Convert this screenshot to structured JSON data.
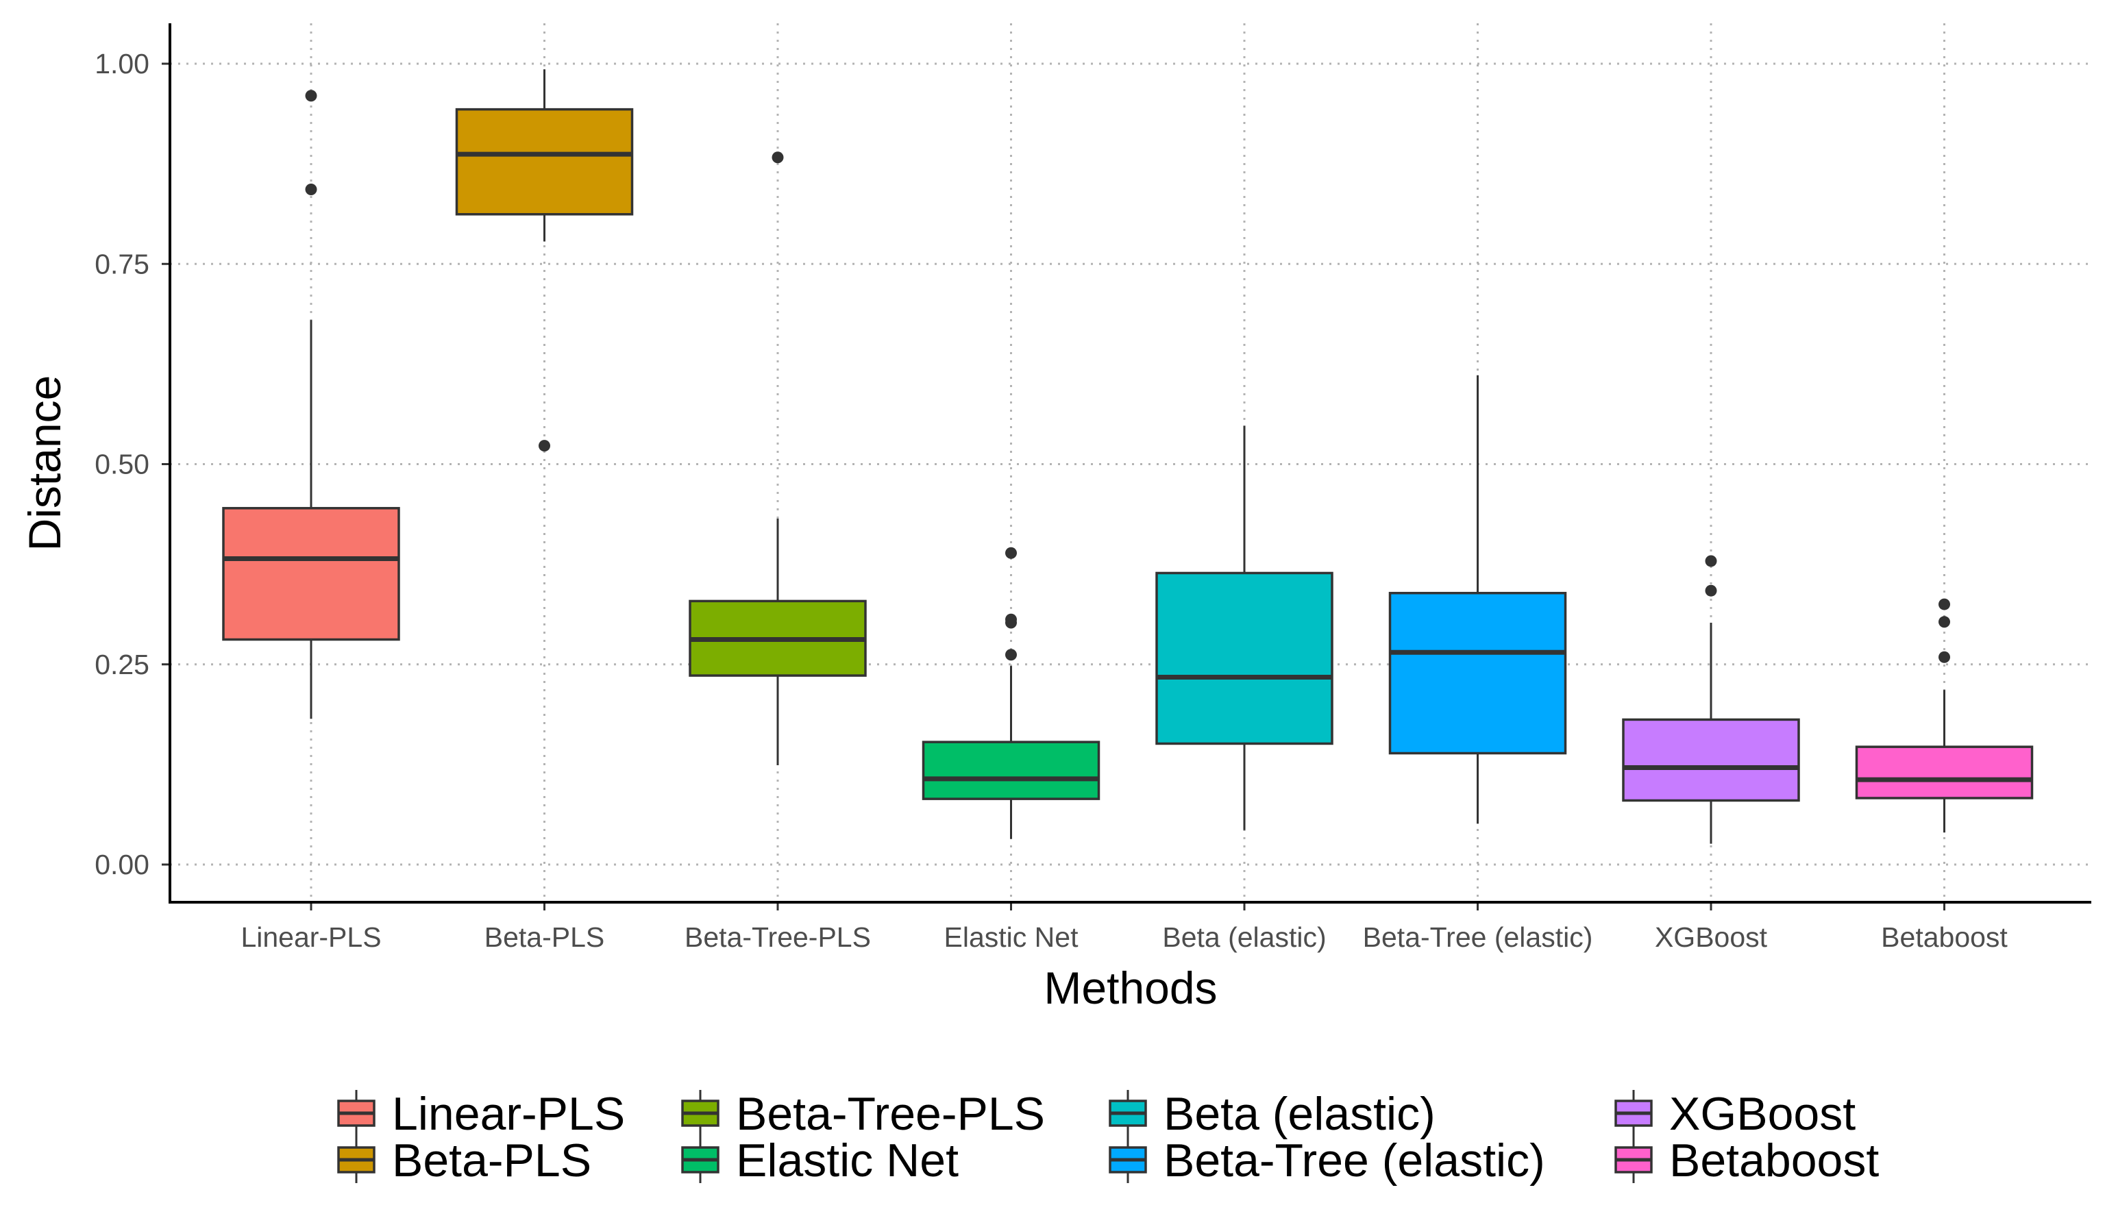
{
  "chart_data": {
    "type": "boxplot",
    "xlabel": "Methods",
    "ylabel": "Distance",
    "ylim": [
      -0.048,
      1.05
    ],
    "yticks": [
      "0.00",
      "0.25",
      "0.50",
      "0.75",
      "1.00"
    ],
    "grid": true,
    "grid_style": "dotted",
    "legend_position": "bottom",
    "categories": [
      "Linear-PLS",
      "Beta-PLS",
      "Beta-Tree-PLS",
      "Elastic Net",
      "Beta (elastic)",
      "Beta-Tree (elastic)",
      "XGBoost",
      "Betaboost"
    ],
    "series": [
      {
        "name": "Linear-PLS",
        "color": "#F8766D",
        "whisker_low": 0.182,
        "q1": 0.281,
        "median": 0.382,
        "q3": 0.445,
        "whisker_high": 0.68,
        "outliers": [
          0.96,
          0.843
        ]
      },
      {
        "name": "Beta-PLS",
        "color": "#CD9600",
        "whisker_low": 0.778,
        "q1": 0.812,
        "median": 0.887,
        "q3": 0.943,
        "whisker_high": 0.993,
        "outliers": [
          0.523
        ]
      },
      {
        "name": "Beta-Tree-PLS",
        "color": "#7CAE00",
        "whisker_low": 0.124,
        "q1": 0.236,
        "median": 0.281,
        "q3": 0.329,
        "whisker_high": 0.432,
        "outliers": [
          0.883
        ]
      },
      {
        "name": "Elastic Net",
        "color": "#00BE67",
        "whisker_low": 0.032,
        "q1": 0.082,
        "median": 0.107,
        "q3": 0.153,
        "whisker_high": 0.248,
        "outliers": [
          0.389,
          0.306,
          0.302,
          0.262
        ]
      },
      {
        "name": "Beta (elastic)",
        "color": "#00BFC4",
        "whisker_low": 0.043,
        "q1": 0.151,
        "median": 0.234,
        "q3": 0.364,
        "whisker_high": 0.548,
        "outliers": []
      },
      {
        "name": "Beta-Tree (elastic)",
        "color": "#00A9FF",
        "whisker_low": 0.051,
        "q1": 0.139,
        "median": 0.265,
        "q3": 0.339,
        "whisker_high": 0.611,
        "outliers": []
      },
      {
        "name": "XGBoost",
        "color": "#C77CFF",
        "whisker_low": 0.026,
        "q1": 0.08,
        "median": 0.121,
        "q3": 0.181,
        "whisker_high": 0.302,
        "outliers": [
          0.379,
          0.342
        ]
      },
      {
        "name": "Betaboost",
        "color": "#FF61CC",
        "whisker_low": 0.04,
        "q1": 0.083,
        "median": 0.106,
        "q3": 0.147,
        "whisker_high": 0.218,
        "outliers": [
          0.325,
          0.303,
          0.259
        ]
      }
    ],
    "legend_order": [
      "Linear-PLS",
      "Beta-PLS",
      "Beta-Tree-PLS",
      "Elastic Net",
      "Beta (elastic)",
      "Beta-Tree (elastic)",
      "XGBoost",
      "Betaboost"
    ]
  }
}
